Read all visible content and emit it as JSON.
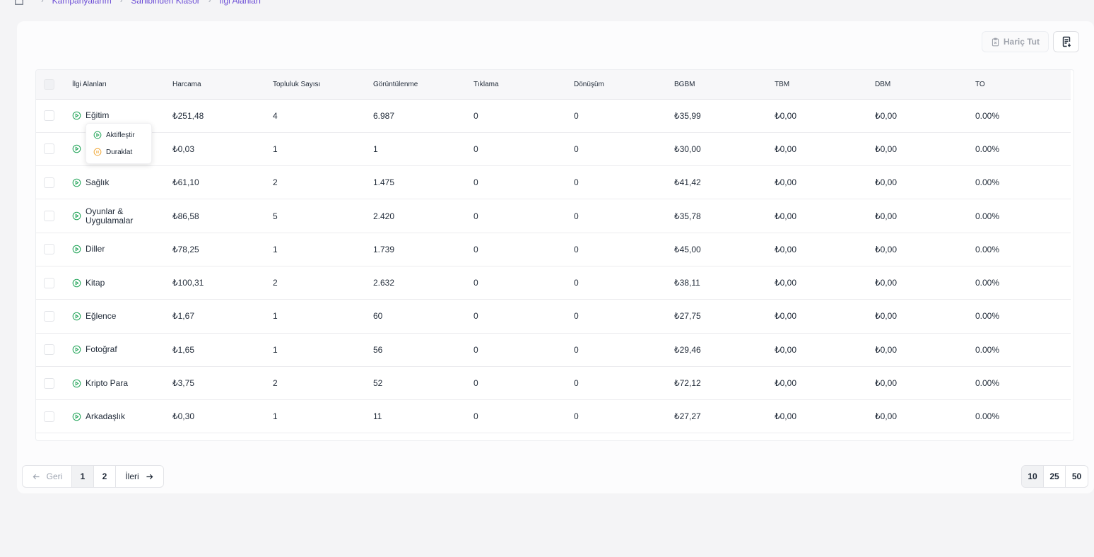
{
  "breadcrumb": {
    "items": [
      "Kampanyalarım",
      "Sahibinden Klasör",
      "İlgi Alanları"
    ]
  },
  "toolbar": {
    "exclude_label": "Hariç Tut",
    "report_icon": "report-download-icon"
  },
  "table": {
    "headers": [
      "İlgi Alanları",
      "Harcama",
      "Topluluk Sayısı",
      "Görüntülenme",
      "Tıklama",
      "Dönüşüm",
      "BGBM",
      "TBM",
      "DBM",
      "TO"
    ],
    "rows": [
      {
        "name": "Eğitim",
        "harcama": "₺251,48",
        "topluluk": "4",
        "goruntulenme": "6.987",
        "tiklama": "0",
        "donusum": "0",
        "bgbm": "₺35,99",
        "tbm": "₺0,00",
        "dbm": "₺0,00",
        "to": "0.00%"
      },
      {
        "name": "",
        "harcama": "₺0,03",
        "topluluk": "1",
        "goruntulenme": "1",
        "tiklama": "0",
        "donusum": "0",
        "bgbm": "₺30,00",
        "tbm": "₺0,00",
        "dbm": "₺0,00",
        "to": "0.00%"
      },
      {
        "name": "Sağlık",
        "harcama": "₺61,10",
        "topluluk": "2",
        "goruntulenme": "1.475",
        "tiklama": "0",
        "donusum": "0",
        "bgbm": "₺41,42",
        "tbm": "₺0,00",
        "dbm": "₺0,00",
        "to": "0.00%"
      },
      {
        "name": "Oyunlar & Uygulamalar",
        "harcama": "₺86,58",
        "topluluk": "5",
        "goruntulenme": "2.420",
        "tiklama": "0",
        "donusum": "0",
        "bgbm": "₺35,78",
        "tbm": "₺0,00",
        "dbm": "₺0,00",
        "to": "0.00%"
      },
      {
        "name": "Diller",
        "harcama": "₺78,25",
        "topluluk": "1",
        "goruntulenme": "1.739",
        "tiklama": "0",
        "donusum": "0",
        "bgbm": "₺45,00",
        "tbm": "₺0,00",
        "dbm": "₺0,00",
        "to": "0.00%"
      },
      {
        "name": "Kitap",
        "harcama": "₺100,31",
        "topluluk": "2",
        "goruntulenme": "2.632",
        "tiklama": "0",
        "donusum": "0",
        "bgbm": "₺38,11",
        "tbm": "₺0,00",
        "dbm": "₺0,00",
        "to": "0.00%"
      },
      {
        "name": "Eğlence",
        "harcama": "₺1,67",
        "topluluk": "1",
        "goruntulenme": "60",
        "tiklama": "0",
        "donusum": "0",
        "bgbm": "₺27,75",
        "tbm": "₺0,00",
        "dbm": "₺0,00",
        "to": "0.00%"
      },
      {
        "name": "Fotoğraf",
        "harcama": "₺1,65",
        "topluluk": "1",
        "goruntulenme": "56",
        "tiklama": "0",
        "donusum": "0",
        "bgbm": "₺29,46",
        "tbm": "₺0,00",
        "dbm": "₺0,00",
        "to": "0.00%"
      },
      {
        "name": "Kripto Para",
        "harcama": "₺3,75",
        "topluluk": "2",
        "goruntulenme": "52",
        "tiklama": "0",
        "donusum": "0",
        "bgbm": "₺72,12",
        "tbm": "₺0,00",
        "dbm": "₺0,00",
        "to": "0.00%"
      },
      {
        "name": "Arkadaşlık",
        "harcama": "₺0,30",
        "topluluk": "1",
        "goruntulenme": "11",
        "tiklama": "0",
        "donusum": "0",
        "bgbm": "₺27,27",
        "tbm": "₺0,00",
        "dbm": "₺0,00",
        "to": "0.00%"
      }
    ]
  },
  "status_menu": {
    "activate_label": "Aktifleştir",
    "pause_label": "Duraklat"
  },
  "pagination": {
    "prev_label": "Geri",
    "next_label": "İleri",
    "pages": [
      "1",
      "2"
    ],
    "current": "1"
  },
  "page_size": {
    "options": [
      "10",
      "25",
      "50"
    ],
    "selected": "10"
  },
  "colors": {
    "accent": "#6d4fd6",
    "active_green": "#22a559",
    "pause_orange": "#f0a531"
  }
}
